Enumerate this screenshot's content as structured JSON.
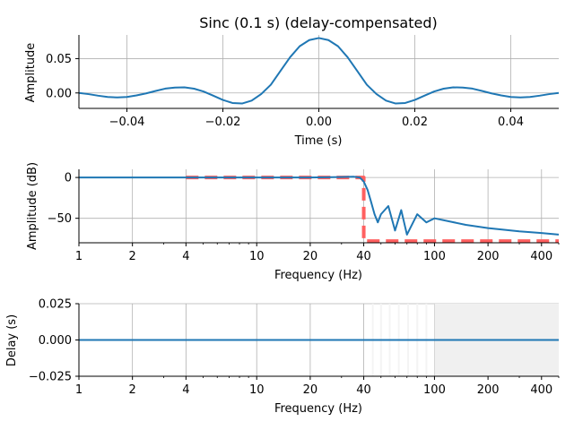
{
  "chart_data": [
    {
      "type": "line",
      "title": "Sinc (0.1 s) (delay-compensated)",
      "xlabel": "Time (s)",
      "ylabel": "Amplitude",
      "xlim": [
        -0.05,
        0.05
      ],
      "ylim": [
        -0.0225,
        0.0845
      ],
      "grid": true,
      "xticks": [
        -0.04,
        -0.02,
        0.0,
        0.02,
        0.04
      ],
      "xtick_labels": [
        "−0.04",
        "−0.02",
        "0.00",
        "0.02",
        "0.04"
      ],
      "yticks": [
        0.0,
        0.05
      ],
      "ytick_labels": [
        "0.00",
        "0.05"
      ],
      "series": [
        {
          "color": "#1f77b4",
          "x": [
            -0.05,
            -0.048,
            -0.046,
            -0.044,
            -0.042,
            -0.04,
            -0.038,
            -0.036,
            -0.034,
            -0.032,
            -0.03,
            -0.028,
            -0.026,
            -0.024,
            -0.022,
            -0.02,
            -0.018,
            -0.016,
            -0.014,
            -0.012,
            -0.01,
            -0.008,
            -0.006,
            -0.004,
            -0.002,
            0.0,
            0.002,
            0.004,
            0.006,
            0.008,
            0.01,
            0.012,
            0.014,
            0.016,
            0.018,
            0.02,
            0.022,
            0.024,
            0.026,
            0.028,
            0.03,
            0.032,
            0.034,
            0.036,
            0.038,
            0.04,
            0.042,
            0.044,
            0.046,
            0.048,
            0.05
          ],
          "y": [
            0.0,
            -0.0017,
            -0.004,
            -0.0059,
            -0.0066,
            -0.0059,
            -0.0036,
            -0.0006,
            0.0029,
            0.0063,
            0.0078,
            0.0082,
            0.0062,
            0.0021,
            -0.004,
            -0.0102,
            -0.0146,
            -0.0154,
            -0.0112,
            -0.0015,
            0.012,
            0.032,
            0.052,
            0.068,
            0.077,
            0.08,
            0.077,
            0.068,
            0.052,
            0.032,
            0.012,
            -0.0015,
            -0.0112,
            -0.0154,
            -0.0146,
            -0.0102,
            -0.004,
            0.0021,
            0.0062,
            0.0082,
            0.0078,
            0.0063,
            0.0029,
            -0.0006,
            -0.0036,
            -0.0059,
            -0.0066,
            -0.0059,
            -0.004,
            -0.0017,
            0.0
          ]
        }
      ]
    },
    {
      "type": "line",
      "xlabel": "Frequency (Hz)",
      "ylabel": "Amplitude (dB)",
      "xscale": "log",
      "xlim": [
        1,
        500
      ],
      "ylim": [
        -80,
        10
      ],
      "grid": true,
      "xticks": [
        1,
        2,
        4,
        10,
        20,
        40,
        100,
        200,
        400
      ],
      "xtick_labels": [
        "1",
        "2",
        "4",
        "10",
        "20",
        "40",
        "100",
        "200",
        "400"
      ],
      "yticks": [
        0,
        -50
      ],
      "ytick_labels": [
        "0",
        "−50"
      ],
      "series": [
        {
          "style": "dashed",
          "color": "#ff6060",
          "x": [
            4,
            40,
            40,
            500
          ],
          "y": [
            0,
            0,
            -78,
            -78
          ]
        },
        {
          "color": "#1f77b4",
          "x": [
            1,
            10,
            20,
            30,
            35,
            38,
            40,
            42,
            44,
            46,
            48,
            50,
            55,
            60,
            65,
            70,
            80,
            90,
            100,
            150,
            200,
            300,
            400,
            500
          ],
          "y": [
            0,
            0,
            0,
            0.5,
            1,
            0,
            -5,
            -15,
            -30,
            -45,
            -55,
            -45,
            -35,
            -65,
            -40,
            -70,
            -45,
            -55,
            -50,
            -58,
            -62,
            -66,
            -68,
            -70
          ]
        }
      ]
    },
    {
      "type": "line",
      "xlabel": "Frequency (Hz)",
      "ylabel": "Delay (s)",
      "xscale": "log",
      "xlim": [
        1,
        500
      ],
      "ylim": [
        -0.025,
        0.025
      ],
      "grid": true,
      "xticks": [
        1,
        2,
        4,
        10,
        20,
        40,
        100,
        200,
        400
      ],
      "xtick_labels": [
        "1",
        "2",
        "4",
        "10",
        "20",
        "40",
        "100",
        "200",
        "400"
      ],
      "yticks": [
        0.025,
        0.0,
        -0.025
      ],
      "ytick_labels": [
        "0.025",
        "0.000",
        "−0.025"
      ],
      "shaded_region": [
        100,
        500
      ],
      "series": [
        {
          "color": "#1f77b4",
          "x": [
            1,
            500
          ],
          "y": [
            0,
            0
          ]
        }
      ]
    }
  ]
}
